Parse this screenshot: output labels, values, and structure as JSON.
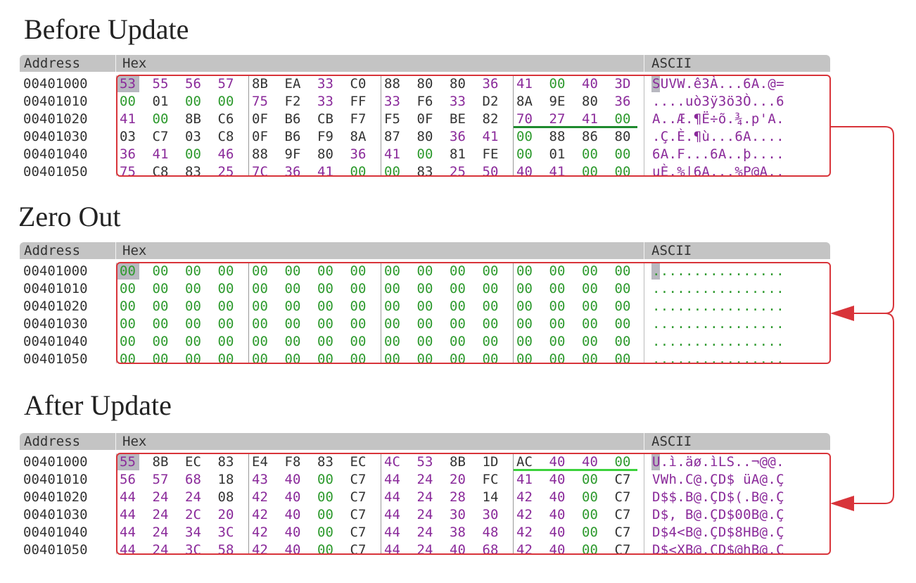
{
  "panels": [
    {
      "title": "Before Update",
      "headers": {
        "address": "Address",
        "hex": "Hex",
        "ascii": "ASCII"
      },
      "rows": [
        {
          "address": "00401000",
          "bytes": [
            "53",
            "55",
            "56",
            "57",
            "8B",
            "EA",
            "33",
            "C0",
            "88",
            "80",
            "80",
            "36",
            "41",
            "00",
            "40",
            "3D"
          ],
          "ascii": "SUVW.ê3À...6A.@="
        },
        {
          "address": "00401010",
          "bytes": [
            "00",
            "01",
            "00",
            "00",
            "75",
            "F2",
            "33",
            "FF",
            "33",
            "F6",
            "33",
            "D2",
            "8A",
            "9E",
            "80",
            "36"
          ],
          "ascii": "....uò3ÿ3ö3Ò...6"
        },
        {
          "address": "00401020",
          "bytes": [
            "41",
            "00",
            "8B",
            "C6",
            "0F",
            "B6",
            "CB",
            "F7",
            "F5",
            "0F",
            "BE",
            "82",
            "70",
            "27",
            "41",
            "00"
          ],
          "ascii": "A..Æ.¶Ë÷õ.¾.p'A."
        },
        {
          "address": "00401030",
          "bytes": [
            "03",
            "C7",
            "03",
            "C8",
            "0F",
            "B6",
            "F9",
            "8A",
            "87",
            "80",
            "36",
            "41",
            "00",
            "88",
            "86",
            "80"
          ],
          "ascii": ".Ç.È.¶ù...6A...."
        },
        {
          "address": "00401040",
          "bytes": [
            "36",
            "41",
            "00",
            "46",
            "88",
            "9F",
            "80",
            "36",
            "41",
            "00",
            "81",
            "FE",
            "00",
            "01",
            "00",
            "00"
          ],
          "ascii": "6A.F...6A..þ...."
        },
        {
          "address": "00401050",
          "bytes": [
            "75",
            "C8",
            "83",
            "25",
            "7C",
            "36",
            "41",
            "00",
            "00",
            "83",
            "25",
            "50",
            "40",
            "41",
            "00",
            "00"
          ],
          "ascii": "uÈ.%|6A...%P@A.."
        }
      ]
    },
    {
      "title": "Zero Out",
      "headers": {
        "address": "Address",
        "hex": "Hex",
        "ascii": "ASCII"
      },
      "rows": [
        {
          "address": "00401000",
          "bytes": [
            "00",
            "00",
            "00",
            "00",
            "00",
            "00",
            "00",
            "00",
            "00",
            "00",
            "00",
            "00",
            "00",
            "00",
            "00",
            "00"
          ],
          "ascii": "................"
        },
        {
          "address": "00401010",
          "bytes": [
            "00",
            "00",
            "00",
            "00",
            "00",
            "00",
            "00",
            "00",
            "00",
            "00",
            "00",
            "00",
            "00",
            "00",
            "00",
            "00"
          ],
          "ascii": "................"
        },
        {
          "address": "00401020",
          "bytes": [
            "00",
            "00",
            "00",
            "00",
            "00",
            "00",
            "00",
            "00",
            "00",
            "00",
            "00",
            "00",
            "00",
            "00",
            "00",
            "00"
          ],
          "ascii": "................"
        },
        {
          "address": "00401030",
          "bytes": [
            "00",
            "00",
            "00",
            "00",
            "00",
            "00",
            "00",
            "00",
            "00",
            "00",
            "00",
            "00",
            "00",
            "00",
            "00",
            "00"
          ],
          "ascii": "................"
        },
        {
          "address": "00401040",
          "bytes": [
            "00",
            "00",
            "00",
            "00",
            "00",
            "00",
            "00",
            "00",
            "00",
            "00",
            "00",
            "00",
            "00",
            "00",
            "00",
            "00"
          ],
          "ascii": "................"
        },
        {
          "address": "00401050",
          "bytes": [
            "00",
            "00",
            "00",
            "00",
            "00",
            "00",
            "00",
            "00",
            "00",
            "00",
            "00",
            "00",
            "00",
            "00",
            "00",
            "00"
          ],
          "ascii": "................"
        }
      ]
    },
    {
      "title": "After Update",
      "headers": {
        "address": "Address",
        "hex": "Hex",
        "ascii": "ASCII"
      },
      "rows": [
        {
          "address": "00401000",
          "bytes": [
            "55",
            "8B",
            "EC",
            "83",
            "E4",
            "F8",
            "83",
            "EC",
            "4C",
            "53",
            "8B",
            "1D",
            "AC",
            "40",
            "40",
            "00"
          ],
          "ascii": "U.ì.äø.ìLS..¬@@."
        },
        {
          "address": "00401010",
          "bytes": [
            "56",
            "57",
            "68",
            "18",
            "43",
            "40",
            "00",
            "C7",
            "44",
            "24",
            "20",
            "FC",
            "41",
            "40",
            "00",
            "C7"
          ],
          "ascii": "VWh.C@.ÇD$ üA@.Ç"
        },
        {
          "address": "00401020",
          "bytes": [
            "44",
            "24",
            "24",
            "08",
            "42",
            "40",
            "00",
            "C7",
            "44",
            "24",
            "28",
            "14",
            "42",
            "40",
            "00",
            "C7"
          ],
          "ascii": "D$$.B@.ÇD$(.B@.Ç"
        },
        {
          "address": "00401030",
          "bytes": [
            "44",
            "24",
            "2C",
            "20",
            "42",
            "40",
            "00",
            "C7",
            "44",
            "24",
            "30",
            "30",
            "42",
            "40",
            "00",
            "C7"
          ],
          "ascii": "D$, B@.ÇD$00B@.Ç"
        },
        {
          "address": "00401040",
          "bytes": [
            "44",
            "24",
            "34",
            "3C",
            "42",
            "40",
            "00",
            "C7",
            "44",
            "24",
            "38",
            "48",
            "42",
            "40",
            "00",
            "C7"
          ],
          "ascii": "D$4<B@.ÇD$8HB@.Ç"
        },
        {
          "address": "00401050",
          "bytes": [
            "44",
            "24",
            "3C",
            "58",
            "42",
            "40",
            "00",
            "C7",
            "44",
            "24",
            "40",
            "68",
            "42",
            "40",
            "00",
            "C7"
          ],
          "ascii": "D$<XB@.ÇD$@hB@.Ç"
        }
      ]
    }
  ]
}
